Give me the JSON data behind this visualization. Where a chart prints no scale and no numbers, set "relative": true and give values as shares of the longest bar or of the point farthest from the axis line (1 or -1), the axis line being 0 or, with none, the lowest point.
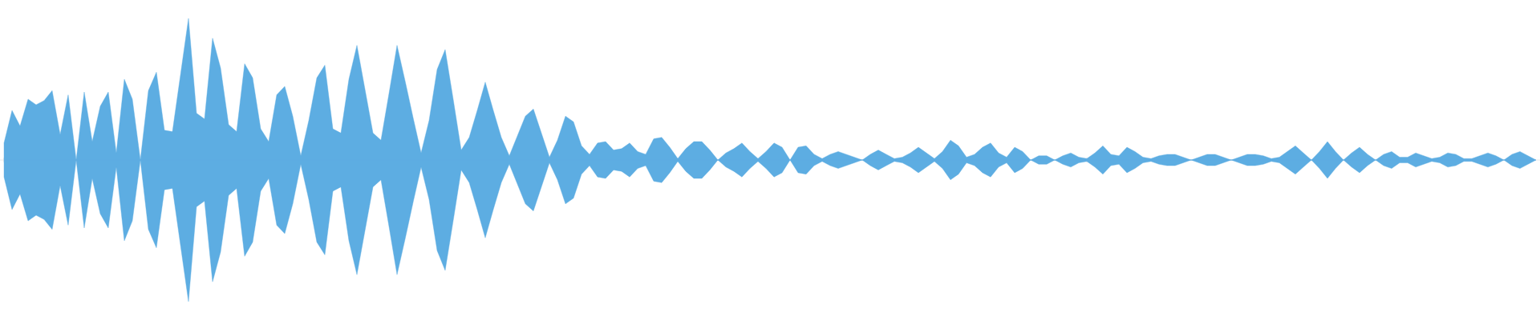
{
  "chart_data": {
    "type": "area",
    "relative": true,
    "categories": [
      null,
      null,
      null,
      null,
      null,
      null,
      null,
      null,
      null,
      null,
      null,
      null,
      null,
      null,
      null,
      null,
      null,
      null,
      null,
      null,
      null,
      null,
      null,
      null,
      null,
      null,
      null,
      null,
      null,
      null,
      null,
      null,
      null,
      null,
      null,
      null,
      null,
      null,
      null,
      null,
      null,
      null,
      null,
      null,
      null,
      null,
      null,
      null,
      null,
      null,
      null,
      null,
      null,
      null,
      null,
      null,
      null,
      null,
      null,
      null,
      null,
      null,
      null,
      null,
      null,
      null,
      null,
      null,
      null,
      null,
      null,
      null,
      null,
      null,
      null,
      null,
      null,
      null,
      null,
      null,
      null,
      null,
      null,
      null,
      null,
      null,
      null,
      null,
      null,
      null,
      null,
      null,
      null,
      null,
      null,
      null,
      null,
      null,
      null,
      null,
      null,
      null,
      null,
      null,
      null,
      null,
      null,
      null,
      null,
      null,
      null,
      null,
      null,
      null,
      null,
      null,
      null,
      null,
      null,
      null,
      null,
      null,
      null,
      null,
      null,
      null,
      null,
      null,
      null,
      null,
      null,
      null,
      null,
      null,
      null,
      null,
      null,
      null,
      null,
      null,
      null,
      null,
      null,
      null,
      null,
      null,
      null,
      null,
      null,
      null,
      null,
      null,
      null,
      null,
      null,
      null,
      null,
      null,
      null,
      null,
      null,
      null,
      null,
      null,
      null,
      null,
      null,
      null,
      null,
      null,
      null,
      null,
      null,
      null,
      null,
      null,
      null,
      null,
      null,
      null,
      null,
      null,
      null,
      null,
      null,
      null,
      null,
      null,
      null,
      null,
      null,
      null
    ],
    "series": [
      {
        "color": "#5dade2",
        "values": [
          0.12,
          0.35,
          0.24,
          0.43,
          0.39,
          0.42,
          0.49,
          0.18,
          0.46,
          0,
          0.48,
          0.13,
          0.38,
          0.48,
          0.05,
          0.57,
          0.43,
          0,
          0.49,
          0.62,
          0.21,
          0.2,
          0.6,
          1,
          0.33,
          0.29,
          0.86,
          0.65,
          0.25,
          0.2,
          0.68,
          0.58,
          0.22,
          0.13,
          0.46,
          0.52,
          0.31,
          0.03,
          0.28,
          0.58,
          0.67,
          0.22,
          0.19,
          0.57,
          0.81,
          0.5,
          0.19,
          0.14,
          0.47,
          0.81,
          0.56,
          0.3,
          0.05,
          0.28,
          0.64,
          0.78,
          0.43,
          0.07,
          0.16,
          0.35,
          0.55,
          0.35,
          0.16,
          0.03,
          0.17,
          0.31,
          0.36,
          0.19,
          0.02,
          0.14,
          0.31,
          0.27,
          0.1,
          0.04,
          0.12,
          0.13,
          0.07,
          0.08,
          0.12,
          0.06,
          0.04,
          0.15,
          0.16,
          0.09,
          0.01,
          0.08,
          0.13,
          0.13,
          0.07,
          0,
          0.05,
          0.08,
          0.12,
          0.06,
          0.01,
          0.06,
          0.12,
          0.09,
          0,
          0.09,
          0.1,
          0.04,
          0.01,
          0.04,
          0.06,
          0.04,
          0.02,
          0,
          0.04,
          0.07,
          0.04,
          0.01,
          0.02,
          0.05,
          0.09,
          0.05,
          0.01,
          0.06,
          0.14,
          0.1,
          0.02,
          0.04,
          0.09,
          0.12,
          0.05,
          0.02,
          0.09,
          0.06,
          0,
          0.03,
          0.03,
          0,
          0.03,
          0.05,
          0.02,
          0.01,
          0.05,
          0.1,
          0.04,
          0.03,
          0.09,
          0.06,
          0.02,
          0.01,
          0.03,
          0.04,
          0.04,
          0.02,
          0,
          0.02,
          0.04,
          0.04,
          0.02,
          0,
          0.02,
          0.04,
          0.04,
          0.03,
          0.01,
          0.02,
          0.06,
          0.1,
          0.05,
          0,
          0.06,
          0.13,
          0.06,
          0,
          0.05,
          0.09,
          0.04,
          0,
          0.04,
          0.06,
          0.02,
          0.02,
          0.05,
          0.03,
          0.01,
          0.02,
          0.05,
          0.04,
          0.01,
          0.01,
          0.03,
          0.05,
          0.03,
          0,
          0.04,
          0.06,
          0.03,
          0
        ]
      },
      {
        "color": "#5dade2",
        "values": [
          -0.12,
          -0.35,
          -0.24,
          -0.43,
          -0.39,
          -0.42,
          -0.49,
          -0.18,
          -0.46,
          0,
          -0.48,
          -0.13,
          -0.38,
          -0.48,
          -0.05,
          -0.57,
          -0.43,
          0,
          -0.49,
          -0.62,
          -0.21,
          -0.2,
          -0.6,
          -1,
          -0.33,
          -0.29,
          -0.86,
          -0.65,
          -0.25,
          -0.2,
          -0.68,
          -0.58,
          -0.22,
          -0.13,
          -0.46,
          -0.52,
          -0.31,
          -0.03,
          -0.28,
          -0.58,
          -0.67,
          -0.22,
          -0.19,
          -0.57,
          -0.81,
          -0.5,
          -0.19,
          -0.14,
          -0.47,
          -0.81,
          -0.56,
          -0.3,
          -0.05,
          -0.28,
          -0.64,
          -0.78,
          -0.43,
          -0.07,
          -0.16,
          -0.35,
          -0.55,
          -0.35,
          -0.16,
          -0.03,
          -0.17,
          -0.31,
          -0.36,
          -0.19,
          -0.02,
          -0.14,
          -0.31,
          -0.27,
          -0.1,
          -0.04,
          -0.12,
          -0.13,
          -0.07,
          -0.08,
          -0.12,
          -0.06,
          -0.04,
          -0.15,
          -0.16,
          -0.09,
          -0.01,
          -0.08,
          -0.13,
          -0.13,
          -0.07,
          0,
          -0.05,
          -0.08,
          -0.12,
          -0.06,
          -0.01,
          -0.06,
          -0.12,
          -0.09,
          0,
          -0.09,
          -0.1,
          -0.04,
          -0.01,
          -0.04,
          -0.06,
          -0.04,
          -0.02,
          0,
          -0.04,
          -0.07,
          -0.04,
          -0.01,
          -0.02,
          -0.05,
          -0.09,
          -0.05,
          -0.01,
          -0.06,
          -0.14,
          -0.1,
          -0.02,
          -0.04,
          -0.09,
          -0.12,
          -0.05,
          -0.02,
          -0.09,
          -0.06,
          0,
          -0.03,
          -0.03,
          0,
          -0.03,
          -0.05,
          -0.02,
          -0.01,
          -0.05,
          -0.1,
          -0.04,
          -0.03,
          -0.09,
          -0.06,
          -0.02,
          -0.01,
          -0.03,
          -0.04,
          -0.04,
          -0.02,
          0,
          -0.02,
          -0.04,
          -0.04,
          -0.02,
          0,
          -0.02,
          -0.04,
          -0.04,
          -0.03,
          -0.01,
          -0.02,
          -0.06,
          -0.1,
          -0.05,
          0,
          -0.06,
          -0.13,
          -0.06,
          0,
          -0.05,
          -0.09,
          -0.04,
          0,
          -0.04,
          -0.06,
          -0.02,
          -0.02,
          -0.05,
          -0.03,
          -0.01,
          -0.02,
          -0.05,
          -0.04,
          -0.01,
          -0.01,
          -0.03,
          -0.05,
          -0.03,
          0,
          -0.04,
          -0.06,
          -0.03,
          0
        ]
      }
    ]
  }
}
